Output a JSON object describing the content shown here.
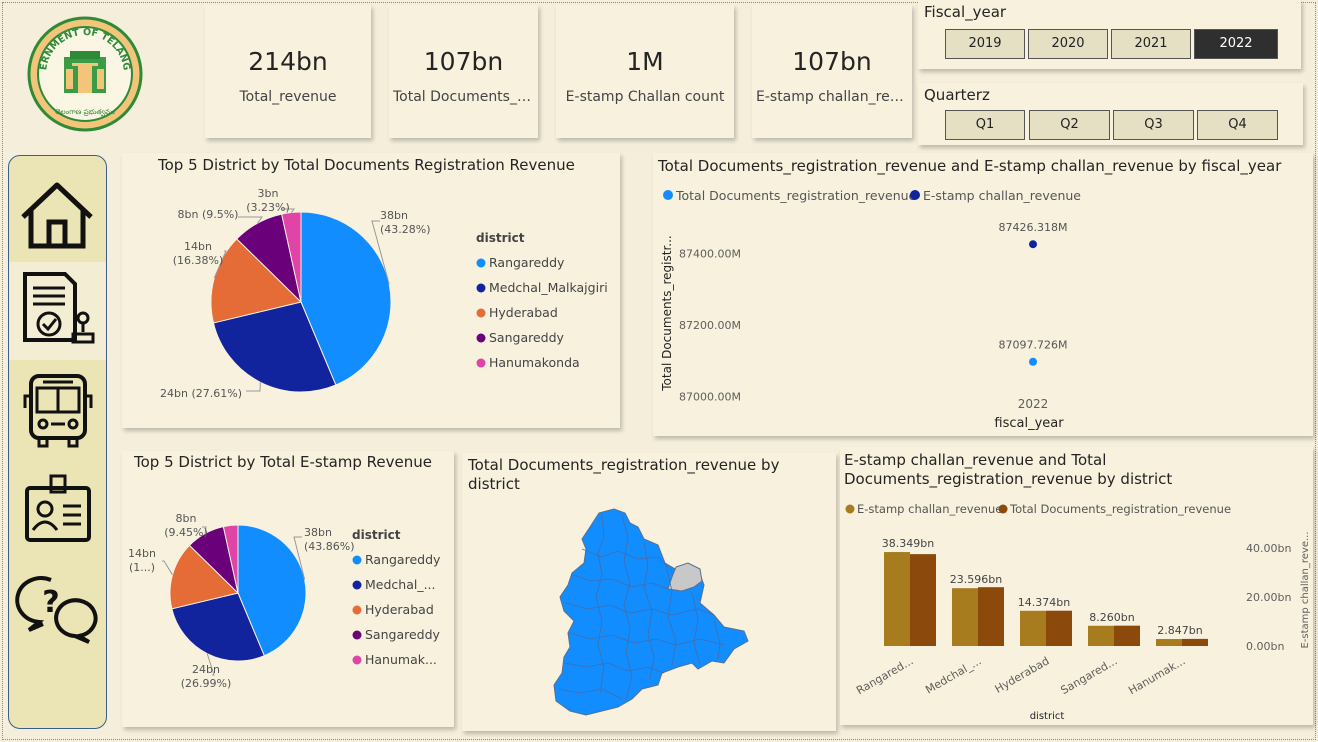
{
  "kpis": [
    {
      "value": "214bn",
      "label": "Total_revenue"
    },
    {
      "value": "107bn",
      "label": "Total Documents_registration_revenue"
    },
    {
      "value": "1M",
      "label": "E-stamp Challan count"
    },
    {
      "value": "107bn",
      "label": "E-stamp challan_revenue"
    }
  ],
  "logo": {
    "text": "GOVERNMENT OF TELANGANA",
    "subtext": "తెలంగాణ ప్రభుత్వము"
  },
  "fiscal_slicer": {
    "title": "Fiscal_year",
    "options": [
      "2019",
      "2020",
      "2021",
      "2022"
    ],
    "selected": "2022"
  },
  "quarter_slicer": {
    "title": "Quarterz",
    "options": [
      "Q1",
      "Q2",
      "Q3",
      "Q4"
    ]
  },
  "nav": [
    {
      "icon": "home-icon"
    },
    {
      "icon": "document-stamp-icon"
    },
    {
      "icon": "bus-icon"
    },
    {
      "icon": "id-card-icon"
    },
    {
      "icon": "help-chat-icon"
    }
  ],
  "colors": {
    "rangareddy": "#118dff",
    "medchal": "#12239e",
    "hyderabad": "#e66c37",
    "sangareddy": "#6b007b",
    "hanumakonda": "#e044a7",
    "estamp_bar": "#a67c1f",
    "docs_bar": "#8b4a0c",
    "map": "#118dff",
    "map_highlight": "#c8c8c8"
  },
  "chart_data": [
    {
      "type": "pie",
      "title": "Top 5 District by Total Documents Registration Revenue",
      "legend_title": "district",
      "categories": [
        "Rangareddy",
        "Medchal_Malkajgiri",
        "Hyderabad",
        "Sangareddy",
        "Hanumakonda"
      ],
      "values": [
        38,
        24,
        14,
        8,
        3
      ],
      "data_labels": [
        [
          "38bn",
          "(43.28%)"
        ],
        [
          "24bn (27.61%)"
        ],
        [
          "14bn",
          "(16.38%)"
        ],
        [
          "8bn (9.5%)"
        ],
        [
          "3bn",
          "(3.23%)"
        ]
      ],
      "legend": "right"
    },
    {
      "type": "scatter",
      "title": "Total Documents_registration_revenue and E-stamp challan_revenue by fiscal_year",
      "xlabel": "fiscal_year",
      "ylabel": "Total Documents_registr...",
      "x": [
        "2022"
      ],
      "y_ticks": [
        "87000.00M",
        "87200.00M",
        "87400.00M"
      ],
      "ylim": [
        86960,
        87480
      ],
      "series": [
        {
          "name": "Total Documents_registration_revenue",
          "values": [
            87097.726
          ],
          "label": "87097.726M"
        },
        {
          "name": "E-stamp challan_revenue",
          "values": [
            87426.318
          ],
          "label": "87426.318M"
        }
      ],
      "legend": "top-left"
    },
    {
      "type": "pie",
      "title": "Top 5 District by Total E-stamp Revenue",
      "legend_title": "district",
      "categories": [
        "Rangareddy",
        "Medchal_...",
        "Hyderabad",
        "Sangareddy",
        "Hanumak..."
      ],
      "values": [
        38,
        24,
        14,
        8,
        3
      ],
      "data_labels": [
        [
          "38bn",
          "(43.86%)"
        ],
        [
          "24bn",
          "(26.99%)"
        ],
        [
          "14bn",
          "(1...)"
        ],
        [
          "8bn",
          "(9.45%)"
        ],
        [
          ""
        ]
      ],
      "legend": "right"
    },
    {
      "type": "map",
      "title": "Total Documents_registration_revenue by district",
      "title_lines": [
        "Total Documents_registration_revenue by",
        "district"
      ]
    },
    {
      "type": "bar",
      "title": "E-stamp challan_revenue and Total Documents_registration_revenue by district",
      "title_lines": [
        "E-stamp challan_revenue and Total",
        "Documents_registration_revenue by district"
      ],
      "xlabel": "district",
      "ylabel": "E-stamp challan_reve...",
      "categories": [
        "Rangared...",
        "Medchal_...",
        "Hyderabad",
        "Sangared...",
        "Hanumak..."
      ],
      "y_ticks": [
        "0.00bn",
        "20.00bn",
        "40.00bn"
      ],
      "ylim": [
        0,
        40
      ],
      "series": [
        {
          "name": "E-stamp challan_revenue",
          "values": [
            38.349,
            23.596,
            14.374,
            8.26,
            2.847
          ]
        },
        {
          "name": "Total Documents_registration_revenue",
          "values": [
            37.5,
            24,
            14.4,
            8.3,
            2.9
          ]
        }
      ],
      "data_labels": [
        "38.349bn",
        "23.596bn",
        "14.374bn",
        "8.260bn",
        "2.847bn"
      ],
      "legend": "top-left"
    }
  ]
}
